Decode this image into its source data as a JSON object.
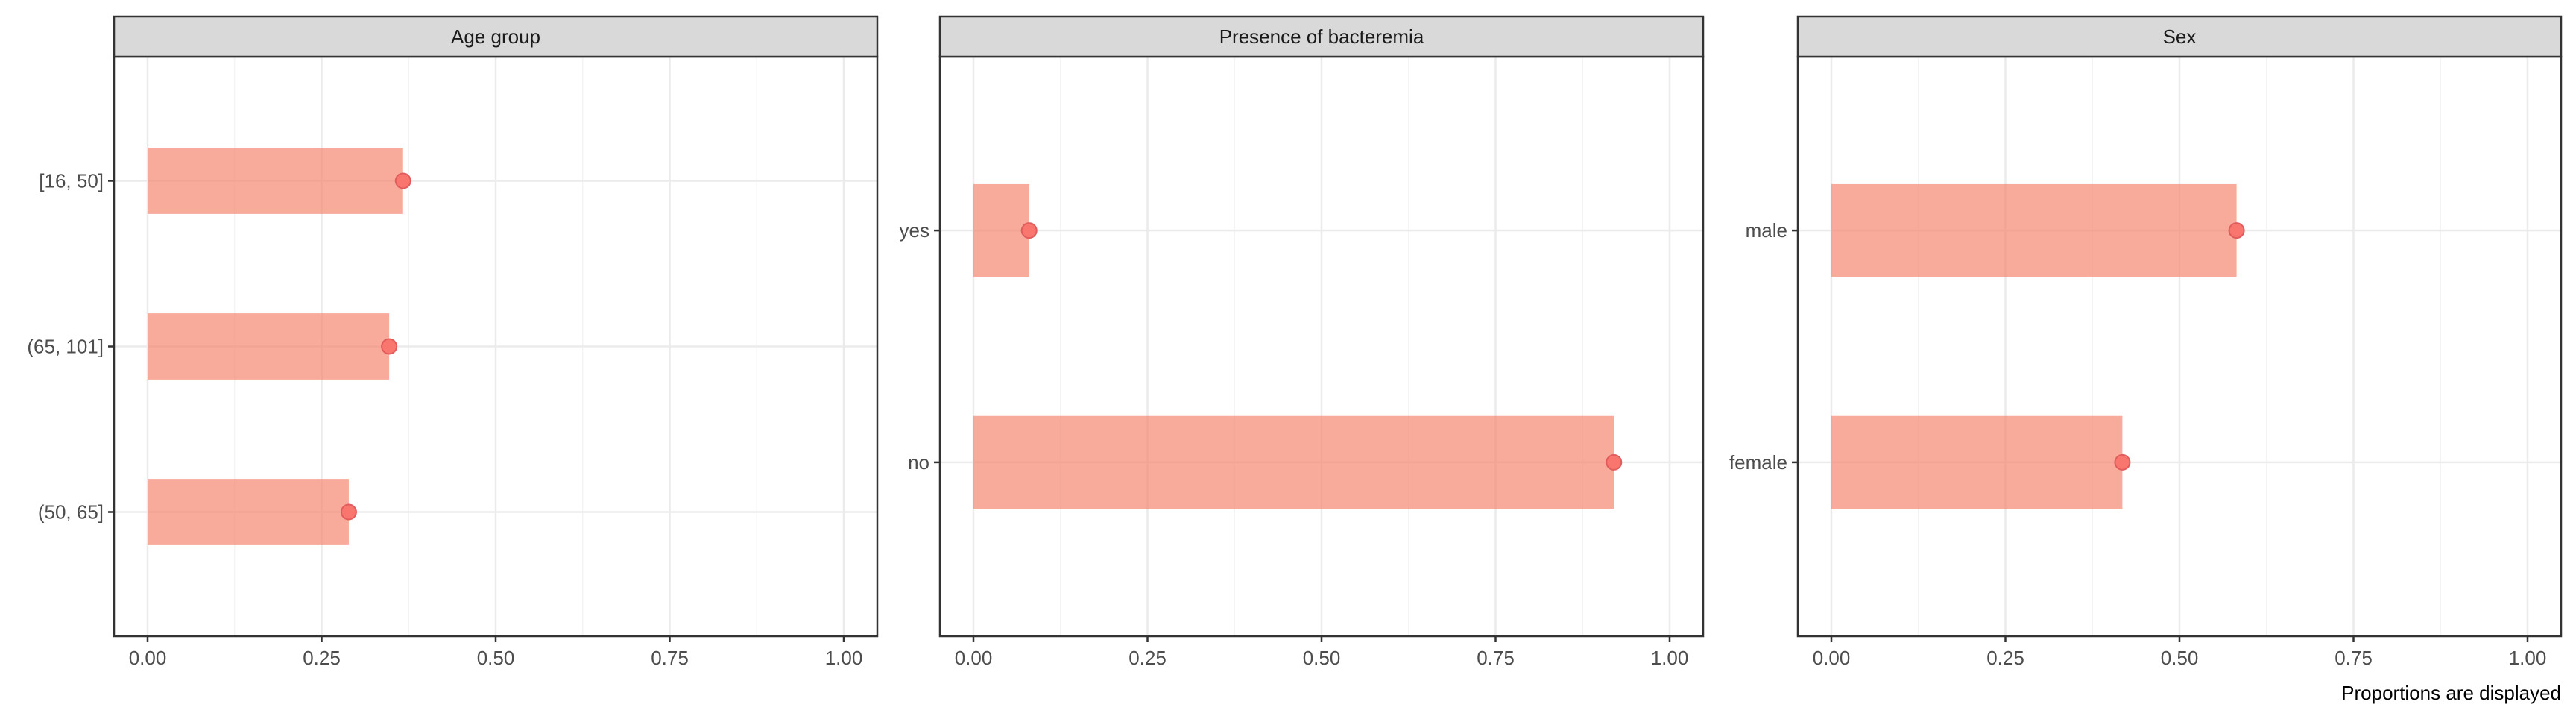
{
  "chart_data": {
    "type": "bar",
    "caption": "Proportions are displayed",
    "x_ticks": [
      "0.00",
      "0.25",
      "0.50",
      "0.75",
      "1.00"
    ],
    "xlim": [
      0,
      1
    ],
    "grid": true,
    "colors": {
      "bar": "#f4836b",
      "point": "#f8766d",
      "point_stroke": "#e15c5c",
      "grid": "#ebebeb",
      "strip": "#d9d9d9",
      "border": "#333333"
    },
    "panels": [
      {
        "title": "Age group",
        "categories": [
          "[16, 50]",
          "(65, 101]",
          "(50, 65]"
        ],
        "values": [
          0.367,
          0.347,
          0.289
        ]
      },
      {
        "title": "Presence of bacteremia",
        "categories": [
          "yes",
          "no"
        ],
        "values": [
          0.08,
          0.92
        ]
      },
      {
        "title": "Sex",
        "categories": [
          "male",
          "female"
        ],
        "values": [
          0.582,
          0.418
        ]
      }
    ]
  }
}
